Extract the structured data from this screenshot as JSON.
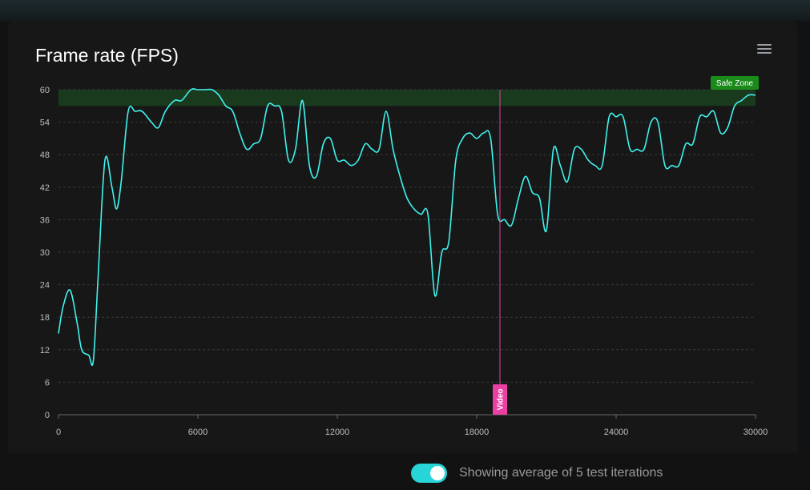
{
  "title": "Frame rate (FPS)",
  "toggle": {
    "label": "Showing average of 5 test iterations",
    "checked": true
  },
  "chart_data": {
    "type": "line",
    "title": "Frame rate (FPS)",
    "xlim": [
      0,
      30000
    ],
    "ylim": [
      0,
      60
    ],
    "xticks": [
      "0",
      "6000",
      "12000",
      "18000",
      "24000",
      "30000"
    ],
    "yticks": [
      "0",
      "6",
      "12",
      "18",
      "24",
      "30",
      "36",
      "42",
      "48",
      "54",
      "60"
    ],
    "grid": "horizontal dashed",
    "colors": {
      "line": "#3ff3ee",
      "zone": "#1a3a1e",
      "zone_label_bg": "#1a8a1a",
      "marker": "#ec3fa3"
    },
    "safe_zone": {
      "label": "Safe Zone",
      "y_from": 57,
      "y_to": 60
    },
    "marker": {
      "label": "Video",
      "x": 19000
    },
    "series": [
      {
        "x": [
          0,
          200,
          500,
          800,
          1000,
          1300,
          1500,
          1700,
          2000,
          2300,
          2500,
          2700,
          3000,
          3300,
          3600,
          4000,
          4300,
          4600,
          5000,
          5300,
          5700,
          6000,
          6300,
          6600,
          6900,
          7200,
          7500,
          7800,
          8100,
          8400,
          8700,
          9000,
          9300,
          9600,
          9900,
          10200,
          10500,
          10800,
          11100,
          11400,
          11700,
          12000,
          12300,
          12600,
          12900,
          13200,
          13500,
          13800,
          14100,
          14400,
          14700,
          15000,
          15300,
          15600,
          15900,
          16200,
          16500,
          16800,
          17100,
          17400,
          17700,
          18000,
          18300,
          18600,
          18900,
          19200,
          19500,
          19800,
          20100,
          20400,
          20700,
          21000,
          21300,
          21600,
          21900,
          22200,
          22500,
          22800,
          23100,
          23400,
          23700,
          24000,
          24300,
          24600,
          24900,
          25200,
          25500,
          25800,
          26100,
          26400,
          26700,
          27000,
          27300,
          27600,
          27900,
          28200,
          28500,
          28800,
          29100,
          29400,
          29700,
          30000
        ],
        "values": [
          15,
          20,
          23,
          17,
          12,
          11,
          10,
          25,
          47,
          42,
          38,
          43,
          56,
          56,
          56,
          54,
          53,
          56,
          58,
          58,
          60,
          60,
          60,
          60,
          59,
          57,
          56,
          52,
          49,
          50,
          51,
          57,
          57,
          56,
          47,
          49,
          58,
          46,
          44,
          50,
          51,
          47,
          47,
          46,
          47,
          50,
          49,
          49,
          56,
          49,
          44,
          40,
          38,
          37,
          37,
          22,
          30,
          32,
          47,
          51,
          52,
          51,
          52,
          51,
          37,
          36,
          35,
          40,
          44,
          41,
          40,
          34,
          49,
          46,
          43,
          49,
          49,
          47,
          46,
          46,
          55,
          55,
          55,
          49,
          49,
          49,
          54,
          54,
          46,
          46,
          46,
          50,
          50,
          55,
          55,
          56,
          52,
          53,
          57,
          58,
          59,
          59
        ]
      }
    ]
  }
}
